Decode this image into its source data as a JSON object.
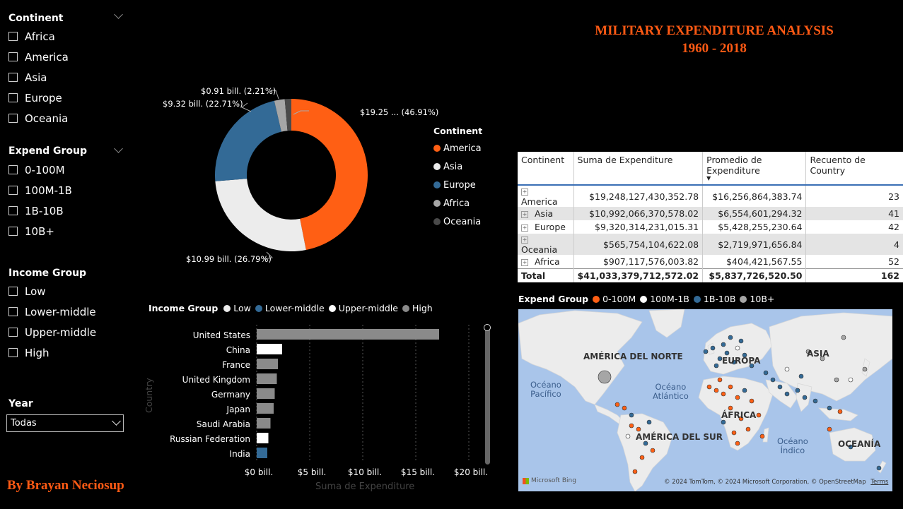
{
  "title": {
    "line1": "MILITARY EXPENDITURE ANALYSIS",
    "line2": "1960 - 2018"
  },
  "byline": "By Brayan Neciosup",
  "slicers": {
    "continent": {
      "title": "Continent",
      "items": [
        "Africa",
        "America",
        "Asia",
        "Europe",
        "Oceania"
      ]
    },
    "expend_group": {
      "title": "Expend Group",
      "items": [
        "0-100M",
        "100M-1B",
        "1B-10B",
        "10B+"
      ]
    },
    "income_group": {
      "title": "Income Group",
      "items": [
        "Low",
        "Lower-middle",
        "Upper-middle",
        "High"
      ]
    },
    "year": {
      "title": "Year",
      "value": "Todas"
    }
  },
  "donut": {
    "legend_title": "Continent",
    "legend": [
      {
        "name": "America",
        "color": "#ff5f14"
      },
      {
        "name": "Asia",
        "color": "#ececec"
      },
      {
        "name": "Europe",
        "color": "#336a96"
      },
      {
        "name": "Africa",
        "color": "#a6a6a6"
      },
      {
        "name": "Oceania",
        "color": "#4a4a4a"
      }
    ],
    "labels": {
      "america": "$19.25 ... (46.91%)",
      "asia": "$10.99 bill. (26.79%)",
      "europe": "$9.32 bill. (22.71%)",
      "africa": "$0.91 bill. (2.21%)"
    }
  },
  "bar_chart": {
    "legend_title": "Income Group",
    "legend": [
      {
        "name": "Low",
        "color": "#ececec"
      },
      {
        "name": "Lower-middle",
        "color": "#336a96"
      },
      {
        "name": "Upper-middle",
        "color": "#ffffff"
      },
      {
        "name": "High",
        "color": "#8a8a8a"
      }
    ],
    "ylabel": "Country",
    "xlabel": "Suma de Expenditure",
    "ticks": [
      "$0 bill.",
      "$5 bill.",
      "$10 bill.",
      "$15 bill.",
      "$20 bill."
    ]
  },
  "table": {
    "headers": [
      "Continent",
      "Suma de Expenditure",
      "Promedio de Expenditure",
      "Recuento de Country"
    ],
    "rows": [
      {
        "continent": "America",
        "sum": "$19,248,127,430,352.78",
        "avg": "$16,256,864,383.74",
        "count": "23"
      },
      {
        "continent": "Asia",
        "sum": "$10,992,066,370,578.02",
        "avg": "$6,554,601,294.32",
        "count": "41"
      },
      {
        "continent": "Europe",
        "sum": "$9,320,314,231,015.31",
        "avg": "$5,428,255,230.64",
        "count": "42"
      },
      {
        "continent": "Oceania",
        "sum": "$565,754,104,622.08",
        "avg": "$2,719,971,656.84",
        "count": "4"
      },
      {
        "continent": "Africa",
        "sum": "$907,117,576,003.82",
        "avg": "$404,421,567.55",
        "count": "52"
      }
    ],
    "total": {
      "label": "Total",
      "sum": "$41,033,379,712,572.02",
      "avg": "$5,837,726,520.50",
      "count": "162"
    }
  },
  "map": {
    "legend_title": "Expend Group",
    "legend": [
      {
        "name": "0-100M",
        "color": "#ff5f14"
      },
      {
        "name": "100M-1B",
        "color": "#ffffff"
      },
      {
        "name": "1B-10B",
        "color": "#336a96"
      },
      {
        "name": "10B+",
        "color": "#a6a6a6"
      }
    ],
    "labels": {
      "na": "AMÉRICA DEL NORTE",
      "eu": "EUROPA",
      "as": "ASIA",
      "af": "ÁFRICA",
      "sa": "AMÉRICA DEL SUR",
      "oc": "OCEANÍA",
      "pac1": "Océano",
      "pac2": "Pacífico",
      "atl1": "Océano",
      "atl2": "Atlántico",
      "ind1": "Océano",
      "ind2": "Índico"
    },
    "bing": "Microsoft Bing",
    "attribution": "© 2024 TomTom, © 2024 Microsoft Corporation, © OpenStreetMap",
    "terms": "Terms"
  },
  "chart_data": [
    {
      "type": "pie",
      "title": "",
      "categories": [
        "America",
        "Asia",
        "Europe",
        "Africa",
        "Oceania"
      ],
      "values": [
        46.91,
        26.79,
        22.71,
        2.21,
        1.38
      ],
      "legend": "right"
    },
    {
      "type": "bar",
      "title": "",
      "orientation": "horizontal",
      "categories": [
        "United States",
        "China",
        "France",
        "United Kingdom",
        "Germany",
        "Japan",
        "Saudi Arabia",
        "Russian Federation",
        "India"
      ],
      "values": [
        17.2,
        2.4,
        2.0,
        1.9,
        1.7,
        1.6,
        1.3,
        1.1,
        1.0
      ],
      "income_group": [
        "High",
        "Upper-middle",
        "High",
        "High",
        "High",
        "High",
        "High",
        "Upper-middle",
        "Lower-middle"
      ],
      "xlabel": "Suma de Expenditure",
      "ylabel": "Country",
      "xlim": [
        0,
        20
      ],
      "legend": "top"
    }
  ]
}
